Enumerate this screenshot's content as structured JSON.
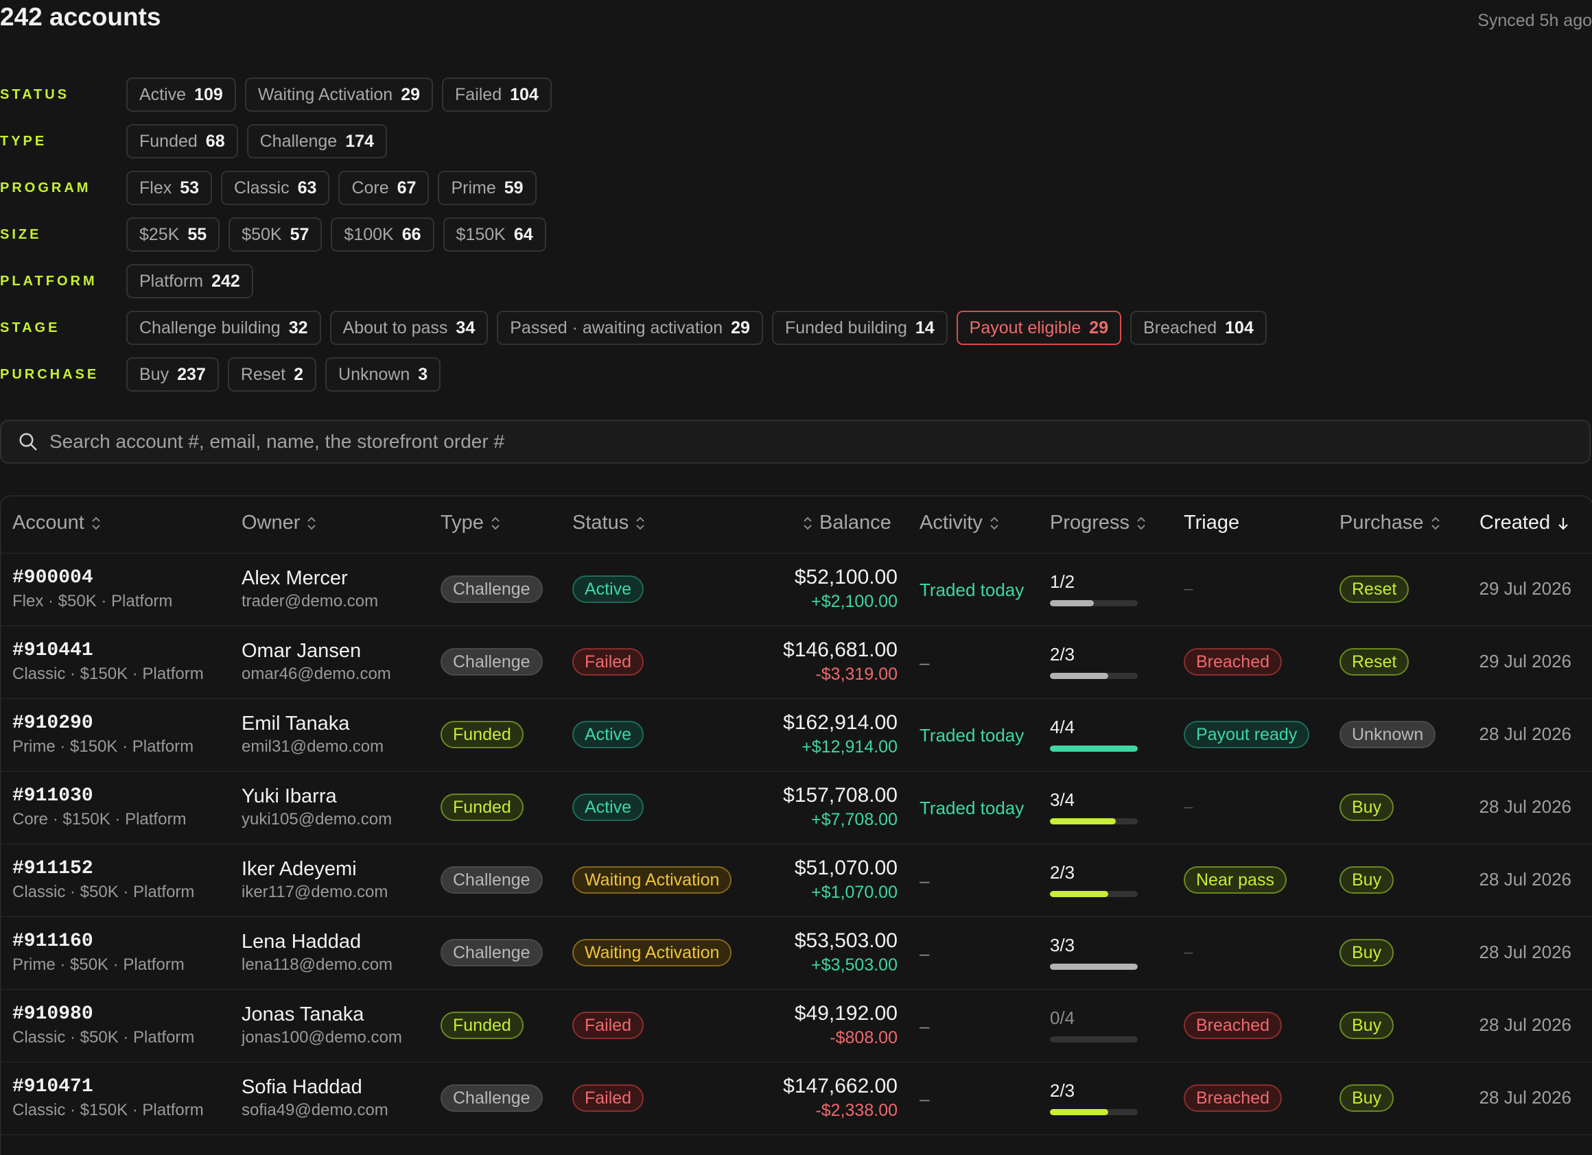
{
  "header": {
    "title": "242 accounts",
    "synced": "Synced 5h ago"
  },
  "filters": [
    {
      "label": "STATUS",
      "chips": [
        {
          "name": "Active",
          "count": "109"
        },
        {
          "name": "Waiting Activation",
          "count": "29"
        },
        {
          "name": "Failed",
          "count": "104"
        }
      ]
    },
    {
      "label": "TYPE",
      "chips": [
        {
          "name": "Funded",
          "count": "68"
        },
        {
          "name": "Challenge",
          "count": "174"
        }
      ]
    },
    {
      "label": "PROGRAM",
      "chips": [
        {
          "name": "Flex",
          "count": "53"
        },
        {
          "name": "Classic",
          "count": "63"
        },
        {
          "name": "Core",
          "count": "67"
        },
        {
          "name": "Prime",
          "count": "59"
        }
      ]
    },
    {
      "label": "SIZE",
      "chips": [
        {
          "name": "$25K",
          "count": "55"
        },
        {
          "name": "$50K",
          "count": "57"
        },
        {
          "name": "$100K",
          "count": "66"
        },
        {
          "name": "$150K",
          "count": "64"
        }
      ]
    },
    {
      "label": "PLATFORM",
      "chips": [
        {
          "name": "Platform",
          "count": "242"
        }
      ]
    },
    {
      "label": "STAGE",
      "chips": [
        {
          "name": "Challenge building",
          "count": "32"
        },
        {
          "name": "About to pass",
          "count": "34"
        },
        {
          "name": "Passed · awaiting activation",
          "count": "29"
        },
        {
          "name": "Funded building",
          "count": "14"
        },
        {
          "name": "Payout eligible",
          "count": "29",
          "tone": "alert"
        },
        {
          "name": "Breached",
          "count": "104"
        }
      ]
    },
    {
      "label": "PURCHASE",
      "chips": [
        {
          "name": "Buy",
          "count": "237"
        },
        {
          "name": "Reset",
          "count": "2"
        },
        {
          "name": "Unknown",
          "count": "3"
        }
      ]
    }
  ],
  "search": {
    "placeholder": "Search account #, email, name, the storefront order #"
  },
  "table": {
    "columns": {
      "account": "Account",
      "owner": "Owner",
      "type": "Type",
      "status": "Status",
      "balance": "Balance",
      "activity": "Activity",
      "progress": "Progress",
      "triage": "Triage",
      "purchase": "Purchase",
      "created": "Created"
    },
    "rows": [
      {
        "id": "#900004",
        "meta": "Flex · $50K · Platform",
        "name": "Alex Mercer",
        "email": "trader@demo.com",
        "type": "Challenge",
        "status": "Active",
        "balance": "$52,100.00",
        "delta": "+$2,100.00",
        "delta_sign": "pos",
        "activity": "Traded today",
        "progress": "1/2",
        "progress_fraction": 0.5,
        "progress_color": "grey",
        "triage": "–",
        "triage_tone": "none",
        "purchase": "Reset",
        "created": "29 Jul 2026"
      },
      {
        "id": "#910441",
        "meta": "Classic · $150K · Platform",
        "name": "Omar Jansen",
        "email": "omar46@demo.com",
        "type": "Challenge",
        "status": "Failed",
        "balance": "$146,681.00",
        "delta": "-$3,319.00",
        "delta_sign": "neg",
        "activity": "–",
        "progress": "2/3",
        "progress_fraction": 0.667,
        "progress_color": "grey",
        "triage": "Breached",
        "triage_tone": "red",
        "purchase": "Reset",
        "created": "29 Jul 2026"
      },
      {
        "id": "#910290",
        "meta": "Prime · $150K · Platform",
        "name": "Emil Tanaka",
        "email": "emil31@demo.com",
        "type": "Funded",
        "status": "Active",
        "balance": "$162,914.00",
        "delta": "+$12,914.00",
        "delta_sign": "pos",
        "activity": "Traded today",
        "progress": "4/4",
        "progress_fraction": 1.0,
        "progress_color": "green",
        "triage": "Payout ready",
        "triage_tone": "green",
        "purchase": "Unknown",
        "created": "28 Jul 2026"
      },
      {
        "id": "#911030",
        "meta": "Core · $150K · Platform",
        "name": "Yuki Ibarra",
        "email": "yuki105@demo.com",
        "type": "Funded",
        "status": "Active",
        "balance": "$157,708.00",
        "delta": "+$7,708.00",
        "delta_sign": "pos",
        "activity": "Traded today",
        "progress": "3/4",
        "progress_fraction": 0.75,
        "progress_color": "lime",
        "triage": "–",
        "triage_tone": "none",
        "purchase": "Buy",
        "created": "28 Jul 2026"
      },
      {
        "id": "#911152",
        "meta": "Classic · $50K · Platform",
        "name": "Iker Adeyemi",
        "email": "iker117@demo.com",
        "type": "Challenge",
        "status": "Waiting Activation",
        "balance": "$51,070.00",
        "delta": "+$1,070.00",
        "delta_sign": "pos",
        "activity": "–",
        "progress": "2/3",
        "progress_fraction": 0.667,
        "progress_color": "lime",
        "triage": "Near pass",
        "triage_tone": "lime",
        "purchase": "Buy",
        "created": "28 Jul 2026"
      },
      {
        "id": "#911160",
        "meta": "Prime · $50K · Platform",
        "name": "Lena Haddad",
        "email": "lena118@demo.com",
        "type": "Challenge",
        "status": "Waiting Activation",
        "balance": "$53,503.00",
        "delta": "+$3,503.00",
        "delta_sign": "pos",
        "activity": "–",
        "progress": "3/3",
        "progress_fraction": 1.0,
        "progress_color": "grey",
        "triage": "–",
        "triage_tone": "none",
        "purchase": "Buy",
        "created": "28 Jul 2026"
      },
      {
        "id": "#910980",
        "meta": "Classic · $50K · Platform",
        "name": "Jonas Tanaka",
        "email": "jonas100@demo.com",
        "type": "Funded",
        "status": "Failed",
        "balance": "$49,192.00",
        "delta": "-$808.00",
        "delta_sign": "neg",
        "activity": "–",
        "progress": "0/4",
        "progress_fraction": 0.0,
        "progress_color": "grey",
        "triage": "Breached",
        "triage_tone": "red",
        "purchase": "Buy",
        "created": "28 Jul 2026"
      },
      {
        "id": "#910471",
        "meta": "Classic · $150K · Platform",
        "name": "Sofia Haddad",
        "email": "sofia49@demo.com",
        "type": "Challenge",
        "status": "Failed",
        "balance": "$147,662.00",
        "delta": "-$2,338.00",
        "delta_sign": "neg",
        "activity": "–",
        "progress": "2/3",
        "progress_fraction": 0.667,
        "progress_color": "lime",
        "triage": "Breached",
        "triage_tone": "red",
        "purchase": "Buy",
        "created": "28 Jul 2026"
      }
    ]
  },
  "colors": {
    "accent": "#c8f031",
    "green": "#3fd6a6",
    "red": "#f0696e",
    "amber": "#f0c43d",
    "background": "#151515"
  }
}
